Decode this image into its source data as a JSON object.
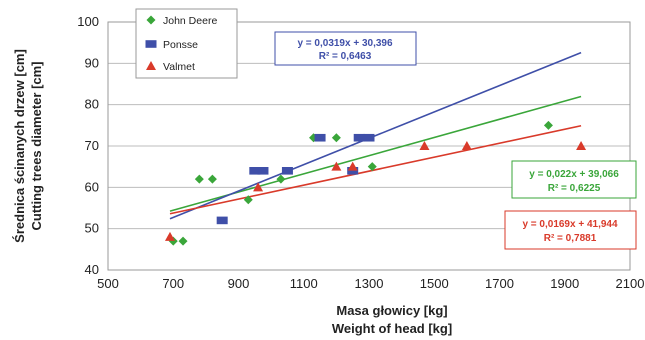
{
  "chart_data": {
    "type": "scatter",
    "xlabel": [
      "Masa głowicy [kg]",
      "Weight of head [kg]"
    ],
    "ylabel": [
      "Średnica ścinanych drzew [cm]",
      "Cutting trees diameter [cm]"
    ],
    "xlim": [
      500,
      2100
    ],
    "ylim": [
      40,
      100
    ],
    "xticks": [
      500,
      700,
      900,
      1100,
      1300,
      1500,
      1700,
      1900,
      2100
    ],
    "yticks": [
      40,
      50,
      60,
      70,
      80,
      90,
      100
    ],
    "grid": "horizontal",
    "legend_position": "top-left",
    "series": [
      {
        "name": "John Deere",
        "color": "#3aa63a",
        "marker": "diamond",
        "points": [
          [
            700,
            47
          ],
          [
            730,
            47
          ],
          [
            780,
            62
          ],
          [
            820,
            62
          ],
          [
            930,
            57
          ],
          [
            1030,
            62
          ],
          [
            1130,
            72
          ],
          [
            1200,
            72
          ],
          [
            1310,
            65
          ],
          [
            1850,
            75
          ]
        ],
        "trend": {
          "slope": 0.022,
          "intercept": 39.066,
          "x_range": [
            690,
            1950
          ]
        },
        "equation": [
          "y = 0,022x + 39,066",
          "R² = 0,6225"
        ]
      },
      {
        "name": "Ponsse",
        "color": "#3f4fa8",
        "marker": "square",
        "points": [
          [
            850,
            52
          ],
          [
            950,
            64
          ],
          [
            975,
            64
          ],
          [
            1050,
            64
          ],
          [
            1150,
            72
          ],
          [
            1270,
            72
          ],
          [
            1300,
            72
          ],
          [
            1250,
            64
          ]
        ],
        "trend": {
          "slope": 0.0319,
          "intercept": 30.396,
          "x_range": [
            690,
            1950
          ]
        },
        "equation": [
          "y = 0,0319x + 30,396",
          "R² = 0,6463"
        ]
      },
      {
        "name": "Valmet",
        "color": "#d93a2a",
        "marker": "triangle",
        "points": [
          [
            690,
            48
          ],
          [
            960,
            60
          ],
          [
            1200,
            65
          ],
          [
            1250,
            65
          ],
          [
            1470,
            70
          ],
          [
            1600,
            70
          ],
          [
            1950,
            70
          ]
        ],
        "trend": {
          "slope": 0.0169,
          "intercept": 41.944,
          "x_range": [
            690,
            1950
          ]
        },
        "equation": [
          "y = 0,0169x + 41,944",
          "R² = 0,7881"
        ]
      }
    ]
  }
}
